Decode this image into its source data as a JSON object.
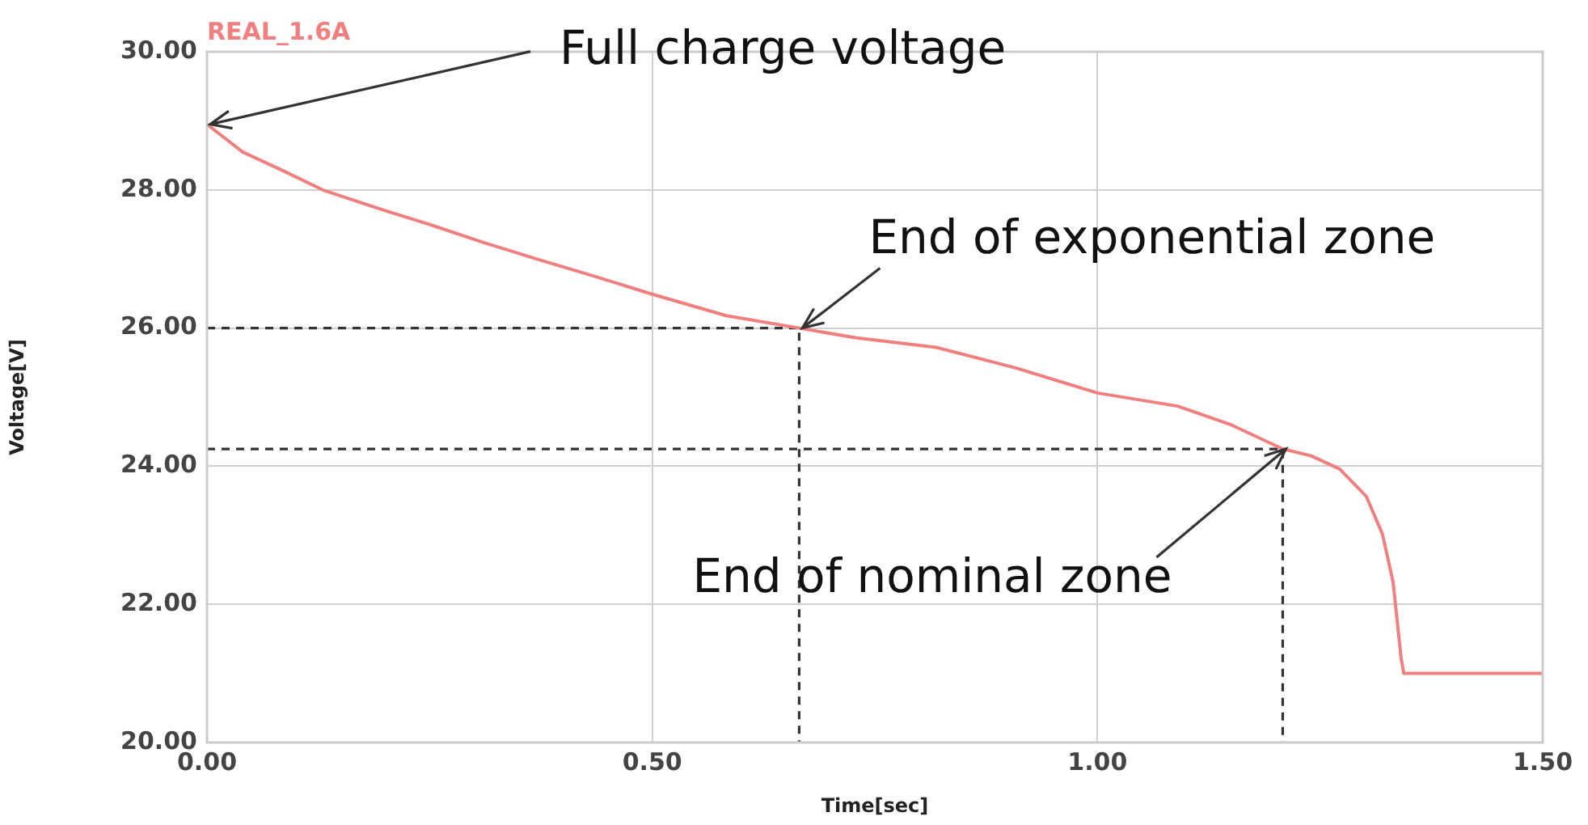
{
  "chart_data": {
    "type": "line",
    "xlabel": "Time[sec]",
    "ylabel": "Voltage[V]",
    "xlim": [
      0,
      1.5
    ],
    "xticks": [
      {
        "value": 0,
        "label": "0.00"
      },
      {
        "value": 0.5,
        "label": "0.50"
      },
      {
        "value": 1,
        "label": "1.00"
      },
      {
        "value": 1.5,
        "label": "1.50"
      }
    ],
    "ylim": [
      20,
      30
    ],
    "yticks": [
      {
        "value": 20,
        "label": "20.00"
      },
      {
        "value": 22,
        "label": "22.00"
      },
      {
        "value": 24,
        "label": "24.00"
      },
      {
        "value": 26,
        "label": "26.00"
      },
      {
        "value": 28,
        "label": "28.00"
      },
      {
        "value": 30,
        "label": "30.00"
      }
    ],
    "grid": true,
    "legend": "top left",
    "marker": "none",
    "series": [
      {
        "name": "REAL_1.6A",
        "color": "#f08080",
        "line_style": "solid",
        "x": [
          0,
          0.02,
          0.04,
          0.085,
          0.13,
          0.2,
          0.25,
          0.31,
          0.37,
          0.43,
          0.5,
          0.583,
          0.665,
          0.728,
          0.819,
          0.909,
          1.0,
          1.09,
          1.15,
          1.208,
          1.24,
          1.272,
          1.302,
          1.32,
          1.332,
          1.341,
          1.344,
          1.5
        ],
        "values": [
          28.95,
          28.75,
          28.55,
          28.28,
          28.0,
          27.7,
          27.5,
          27.24,
          27.0,
          26.77,
          26.49,
          26.18,
          26.0,
          25.86,
          25.72,
          25.42,
          25.06,
          24.87,
          24.6,
          24.25,
          24.15,
          23.96,
          23.56,
          23.02,
          22.32,
          21.22,
          21.0,
          21.0
        ]
      },
      {
        "color": "#333333",
        "line_style": "dashed",
        "x": [
          0,
          0.665,
          0.665
        ],
        "values": [
          26.0,
          26.0,
          20
        ]
      },
      {
        "color": "#333333",
        "line_style": "dashed",
        "x": [
          0,
          1.208,
          1.208
        ],
        "values": [
          24.25,
          24.25,
          20
        ]
      }
    ],
    "annotations": [
      {
        "text": "Full charge voltage",
        "x": 0,
        "y": 28.95
      },
      {
        "text": "End of exponential zone",
        "x": 0.665,
        "y": 26.0
      },
      {
        "text": "End of nominal zone",
        "x": 1.208,
        "y": 24.25
      }
    ]
  }
}
